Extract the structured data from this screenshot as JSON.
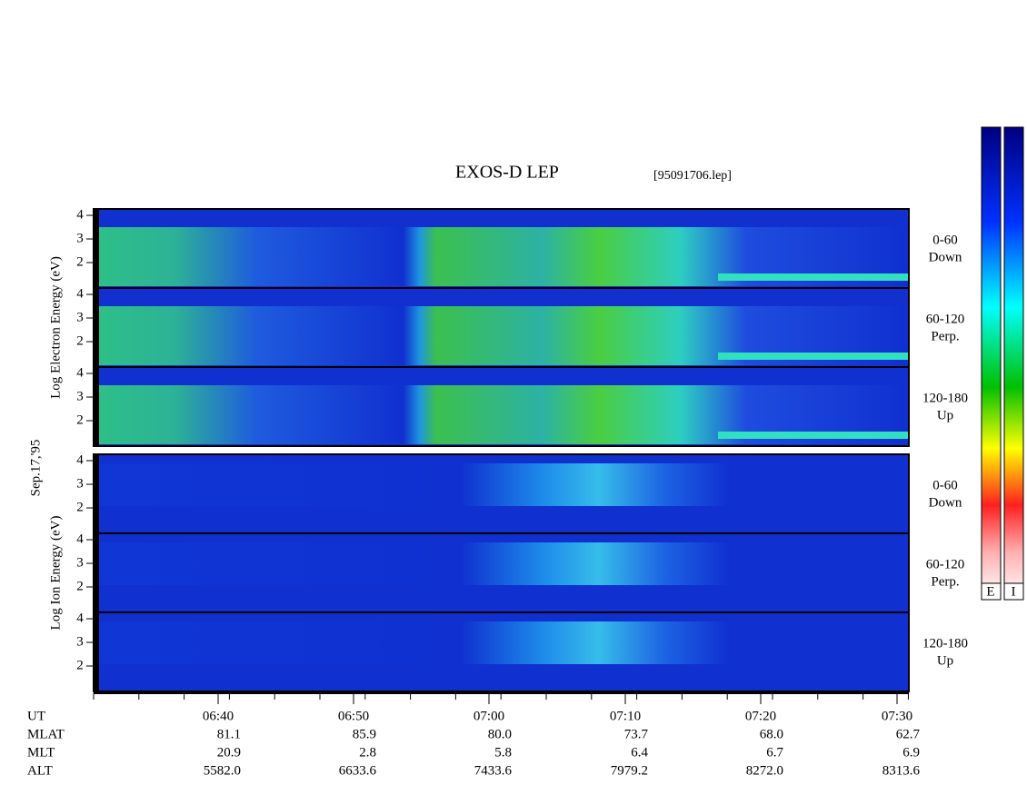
{
  "title": "EXOS-D LEP",
  "file": "[95091706.lep]",
  "date": "Sep.17,'95",
  "groups": [
    {
      "ylabel": "Log  Electron  Energy (eV)",
      "panels": [
        {
          "ticks": [
            4,
            3,
            2
          ],
          "label": [
            "0-60",
            "Down"
          ]
        },
        {
          "ticks": [
            4,
            3,
            2
          ],
          "label": [
            "60-120",
            "Perp."
          ]
        },
        {
          "ticks": [
            4,
            3,
            2
          ],
          "label": [
            "120-180",
            "Up"
          ]
        }
      ]
    },
    {
      "ylabel": "Log  Ion  Energy (eV)",
      "panels": [
        {
          "ticks": [
            4,
            3,
            2
          ],
          "label": [
            "0-60",
            "Down"
          ]
        },
        {
          "ticks": [
            4,
            3,
            2
          ],
          "label": [
            "60-120",
            "Perp."
          ]
        },
        {
          "ticks": [
            4,
            3,
            2
          ],
          "label": [
            "120-180",
            "Up"
          ]
        }
      ]
    }
  ],
  "time_axis": {
    "rows": [
      {
        "name": "UT",
        "values": [
          "06:40",
          "06:50",
          "07:00",
          "07:10",
          "07:20",
          "07:30"
        ]
      },
      {
        "name": "MLAT",
        "values": [
          "81.1",
          "85.9",
          "80.0",
          "73.7",
          "68.0",
          "62.7"
        ]
      },
      {
        "name": "MLT",
        "values": [
          "20.9",
          "2.8",
          "5.8",
          "6.4",
          "6.7",
          "6.9"
        ]
      },
      {
        "name": "ALT",
        "values": [
          "5582.0",
          "6633.6",
          "7433.6",
          "7979.2",
          "8272.0",
          "8313.6"
        ]
      }
    ]
  },
  "colorbar_labels": [
    "E",
    "I"
  ]
}
